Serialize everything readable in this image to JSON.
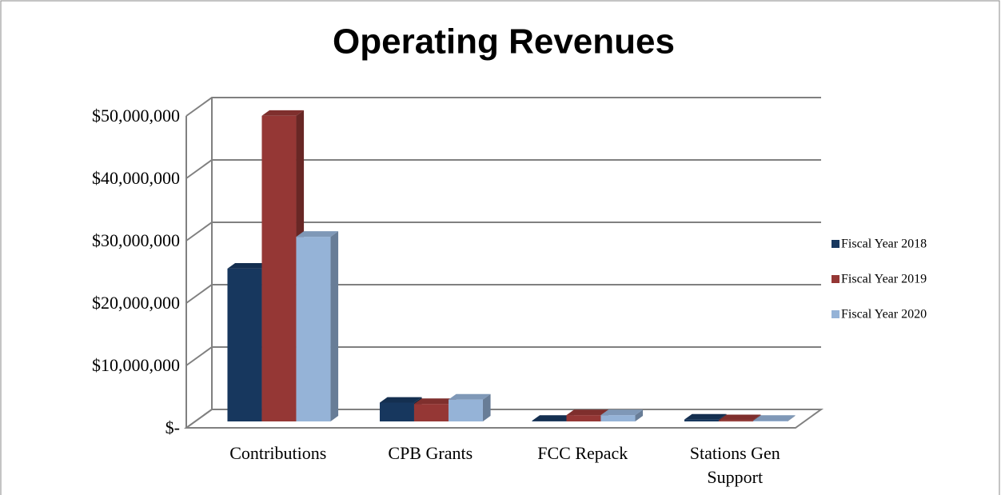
{
  "chart_data": {
    "type": "bar3d",
    "title": "Operating Revenues",
    "categories": [
      "Contributions",
      "CPB Grants",
      "FCC Repack",
      "Stations Gen Support"
    ],
    "series": [
      {
        "name": "Fiscal Year 2018",
        "color": "#17375e",
        "values": [
          24500000,
          3000000,
          100000,
          300000
        ]
      },
      {
        "name": "Fiscal Year 2019",
        "color": "#953735",
        "values": [
          49000000,
          2800000,
          1000000,
          200000
        ]
      },
      {
        "name": "Fiscal Year 2020",
        "color": "#95b3d7",
        "values": [
          29600000,
          3500000,
          1000000,
          100000
        ]
      }
    ],
    "ylim": [
      0,
      50000000
    ],
    "yticks": [
      {
        "value": 0,
        "label": "$-"
      },
      {
        "value": 10000000,
        "label": "$10,000,000"
      },
      {
        "value": 20000000,
        "label": "$20,000,000"
      },
      {
        "value": 30000000,
        "label": "$30,000,000"
      },
      {
        "value": 40000000,
        "label": "$40,000,000"
      },
      {
        "value": 50000000,
        "label": "$50,000,000"
      }
    ],
    "grid": true,
    "legend": "right"
  }
}
